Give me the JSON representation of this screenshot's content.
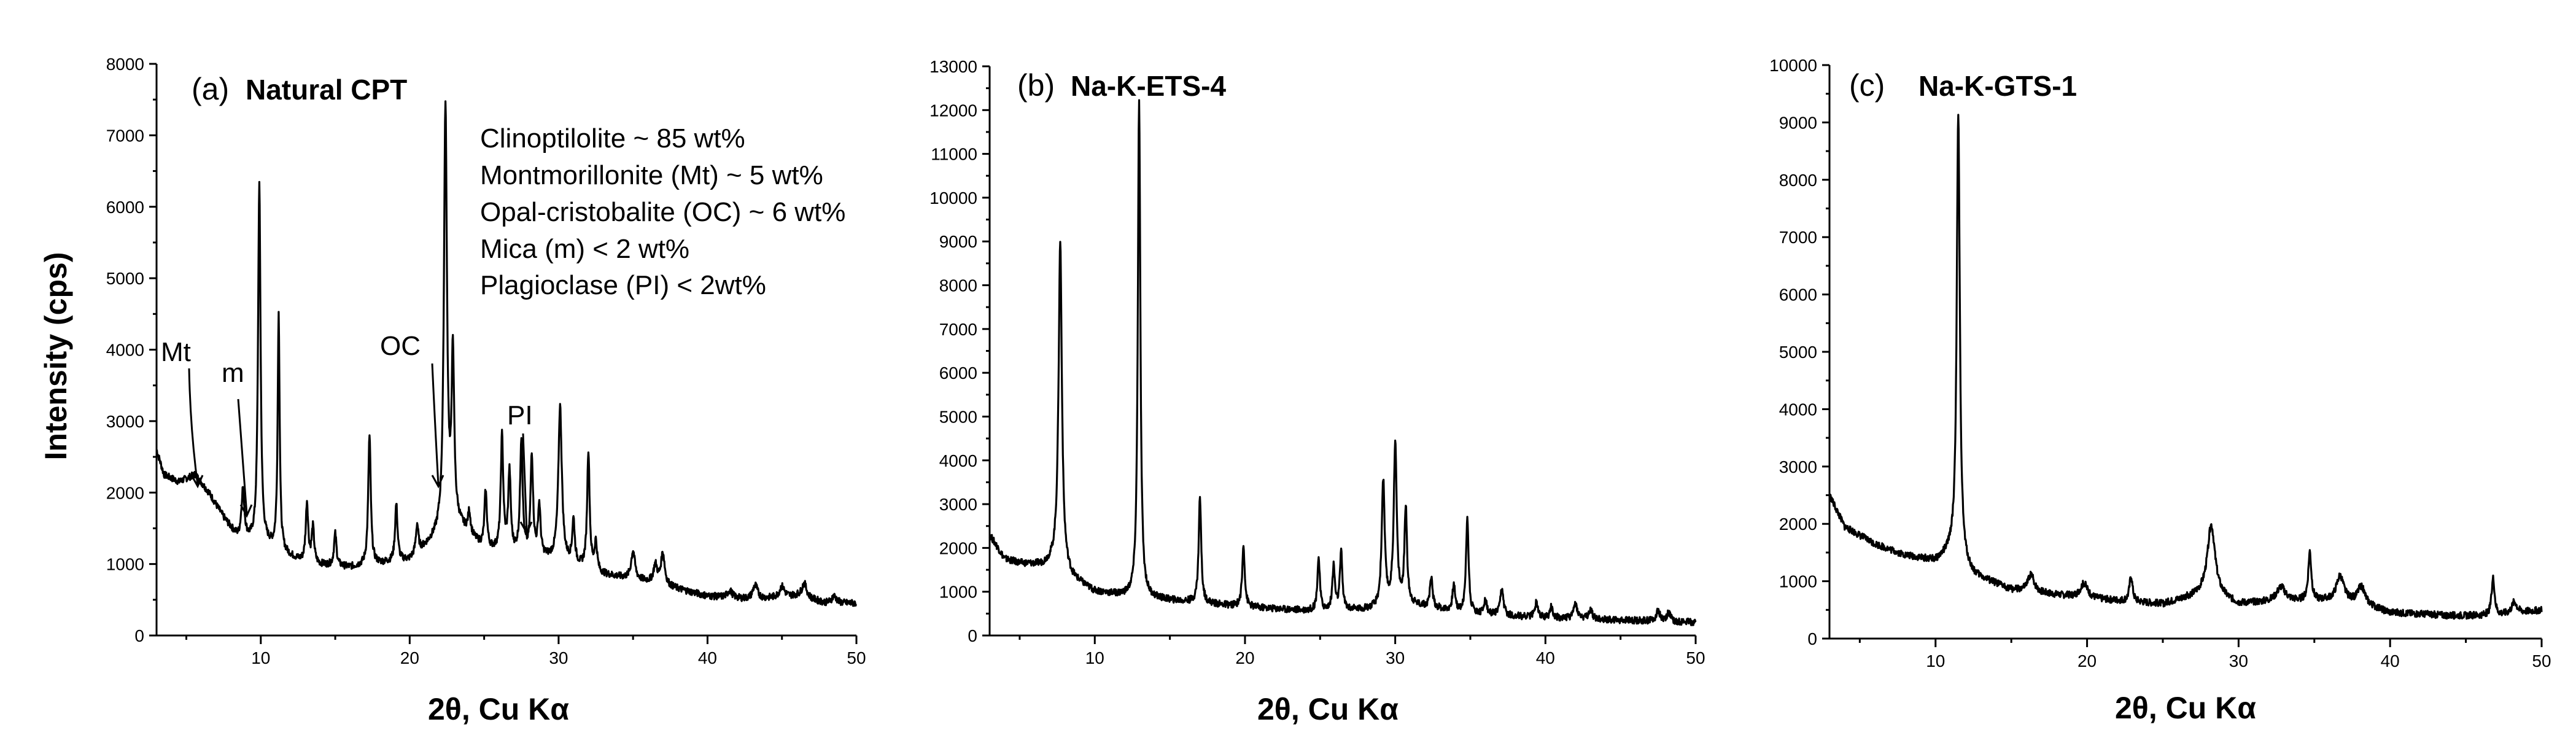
{
  "chart_data": [
    {
      "id": "a",
      "type": "line",
      "panel_letter": "(a)",
      "panel_name": "Natural CPT",
      "xlabel": "2θ, Cu Kα",
      "ylabel": "Intensity (cps)",
      "xlim": [
        3,
        50
      ],
      "ylim": [
        0,
        8000
      ],
      "xticks": [
        10,
        20,
        30,
        40,
        50
      ],
      "yticks": [
        0,
        1000,
        2000,
        3000,
        4000,
        5000,
        6000,
        7000,
        8000
      ],
      "grid": false,
      "composition": [
        "Clinoptilolite ~ 85 wt%",
        "Montmorillonite (Mt) ~ 5 wt%",
        "Opal-cristobalite (OC) ~ 6 wt%",
        "Mica (m) < 2 wt%",
        "Plagioclase (PI) < 2wt%"
      ],
      "annotations": [
        {
          "label": "Mt",
          "x": 5.6,
          "y": 2250
        },
        {
          "label": "m",
          "x": 8.9,
          "y": 1700
        },
        {
          "label": "OC",
          "x": 21.8,
          "y": 2200
        },
        {
          "label": "PI",
          "x": 27.6,
          "y": 1600
        }
      ],
      "baseline": [
        [
          3,
          2600
        ],
        [
          3.5,
          2250
        ],
        [
          4.5,
          2150
        ],
        [
          5.6,
          2250
        ],
        [
          6.5,
          2000
        ],
        [
          7.5,
          1650
        ],
        [
          8.5,
          1350
        ],
        [
          10.5,
          1250
        ],
        [
          13,
          1000
        ],
        [
          16,
          950
        ],
        [
          20,
          1050
        ],
        [
          22,
          1400
        ],
        [
          23,
          1600
        ],
        [
          25,
          1200
        ],
        [
          30,
          1050
        ],
        [
          33,
          850
        ],
        [
          36,
          750
        ],
        [
          38,
          650
        ],
        [
          40,
          550
        ],
        [
          43,
          500
        ],
        [
          46,
          550
        ],
        [
          48,
          450
        ],
        [
          50,
          450
        ]
      ],
      "peaks": [
        [
          8.8,
          700,
          0.12
        ],
        [
          9.9,
          5000,
          0.1
        ],
        [
          11.2,
          3300,
          0.08
        ],
        [
          13.1,
          850,
          0.1
        ],
        [
          13.5,
          500,
          0.1
        ],
        [
          15.0,
          450,
          0.1
        ],
        [
          17.3,
          1800,
          0.1
        ],
        [
          19.1,
          800,
          0.1
        ],
        [
          20.5,
          400,
          0.1
        ],
        [
          22.4,
          5900,
          0.12
        ],
        [
          22.9,
          2300,
          0.1
        ],
        [
          24.0,
          300,
          0.1
        ],
        [
          25.1,
          800,
          0.1
        ],
        [
          26.2,
          1600,
          0.1
        ],
        [
          26.7,
          1100,
          0.1
        ],
        [
          27.5,
          1600,
          0.1
        ],
        [
          28.2,
          1400,
          0.1
        ],
        [
          28.7,
          700,
          0.1
        ],
        [
          30.1,
          2150,
          0.14
        ],
        [
          31.0,
          600,
          0.1
        ],
        [
          32.0,
          1650,
          0.1
        ],
        [
          32.5,
          400,
          0.1
        ],
        [
          35.0,
          400,
          0.15
        ],
        [
          36.5,
          250,
          0.15
        ],
        [
          37.0,
          450,
          0.15
        ],
        [
          41.5,
          100,
          0.2
        ],
        [
          43.2,
          200,
          0.2
        ],
        [
          45.0,
          150,
          0.2
        ],
        [
          46.5,
          200,
          0.2
        ],
        [
          48.5,
          100,
          0.2
        ]
      ]
    },
    {
      "id": "b",
      "type": "line",
      "panel_letter": "(b)",
      "panel_name": "Na-K-ETS-4",
      "xlabel": "2θ, Cu Kα",
      "ylabel": "",
      "xlim": [
        3,
        50
      ],
      "ylim": [
        0,
        13000
      ],
      "xticks": [
        10,
        20,
        30,
        40,
        50
      ],
      "yticks": [
        0,
        1000,
        2000,
        3000,
        4000,
        5000,
        6000,
        7000,
        8000,
        9000,
        10000,
        11000,
        12000,
        13000
      ],
      "grid": false,
      "baseline": [
        [
          3,
          2300
        ],
        [
          4,
          1750
        ],
        [
          5,
          1650
        ],
        [
          6.5,
          1600
        ],
        [
          7.5,
          1700
        ],
        [
          8.5,
          1300
        ],
        [
          10,
          1000
        ],
        [
          12,
          900
        ],
        [
          15,
          800
        ],
        [
          20,
          650
        ],
        [
          25,
          550
        ],
        [
          29,
          600
        ],
        [
          31,
          700
        ],
        [
          35,
          500
        ],
        [
          40,
          400
        ],
        [
          45,
          350
        ],
        [
          50,
          300
        ]
      ],
      "peaks": [
        [
          7.7,
          7400,
          0.13
        ],
        [
          12.95,
          11300,
          0.1
        ],
        [
          17.0,
          2400,
          0.1
        ],
        [
          19.9,
          1400,
          0.1
        ],
        [
          24.9,
          1200,
          0.1
        ],
        [
          25.9,
          1000,
          0.1
        ],
        [
          26.4,
          1300,
          0.1
        ],
        [
          29.2,
          2900,
          0.12
        ],
        [
          30.0,
          3700,
          0.12
        ],
        [
          30.7,
          2200,
          0.1
        ],
        [
          32.4,
          700,
          0.1
        ],
        [
          33.9,
          600,
          0.1
        ],
        [
          34.8,
          2200,
          0.1
        ],
        [
          36.0,
          350,
          0.1
        ],
        [
          37.1,
          600,
          0.12
        ],
        [
          39.4,
          350,
          0.12
        ],
        [
          40.4,
          250,
          0.12
        ],
        [
          42.0,
          350,
          0.15
        ],
        [
          43.0,
          200,
          0.15
        ],
        [
          47.5,
          250,
          0.15
        ],
        [
          48.2,
          200,
          0.15
        ]
      ]
    },
    {
      "id": "c",
      "type": "line",
      "panel_letter": "(c)",
      "panel_name": "Na-K-GTS-1",
      "xlabel": "2θ, Cu Kα",
      "ylabel": "",
      "xlim": [
        3,
        50
      ],
      "ylim": [
        0,
        10000
      ],
      "xticks": [
        10,
        20,
        30,
        40,
        50
      ],
      "yticks": [
        0,
        1000,
        2000,
        3000,
        4000,
        5000,
        6000,
        7000,
        8000,
        9000,
        10000
      ],
      "grid": false,
      "baseline": [
        [
          3,
          2500
        ],
        [
          4,
          1950
        ],
        [
          6,
          1650
        ],
        [
          8,
          1450
        ],
        [
          10,
          1350
        ],
        [
          11,
          1500
        ],
        [
          12.5,
          1100
        ],
        [
          15,
          850
        ],
        [
          20,
          700
        ],
        [
          25,
          600
        ],
        [
          28,
          800
        ],
        [
          30,
          600
        ],
        [
          33,
          650
        ],
        [
          36,
          650
        ],
        [
          38,
          600
        ],
        [
          40,
          450
        ],
        [
          44,
          400
        ],
        [
          47,
          400
        ],
        [
          50,
          500
        ]
      ],
      "peaks": [
        [
          11.5,
          7800,
          0.12
        ],
        [
          16.3,
          300,
          0.25
        ],
        [
          19.8,
          250,
          0.3
        ],
        [
          22.9,
          450,
          0.12
        ],
        [
          28.2,
          1200,
          0.3
        ],
        [
          32.8,
          250,
          0.35
        ],
        [
          34.7,
          850,
          0.12
        ],
        [
          36.7,
          450,
          0.3
        ],
        [
          38.1,
          300,
          0.3
        ],
        [
          46.8,
          650,
          0.12
        ],
        [
          48.2,
          200,
          0.2
        ]
      ]
    }
  ]
}
